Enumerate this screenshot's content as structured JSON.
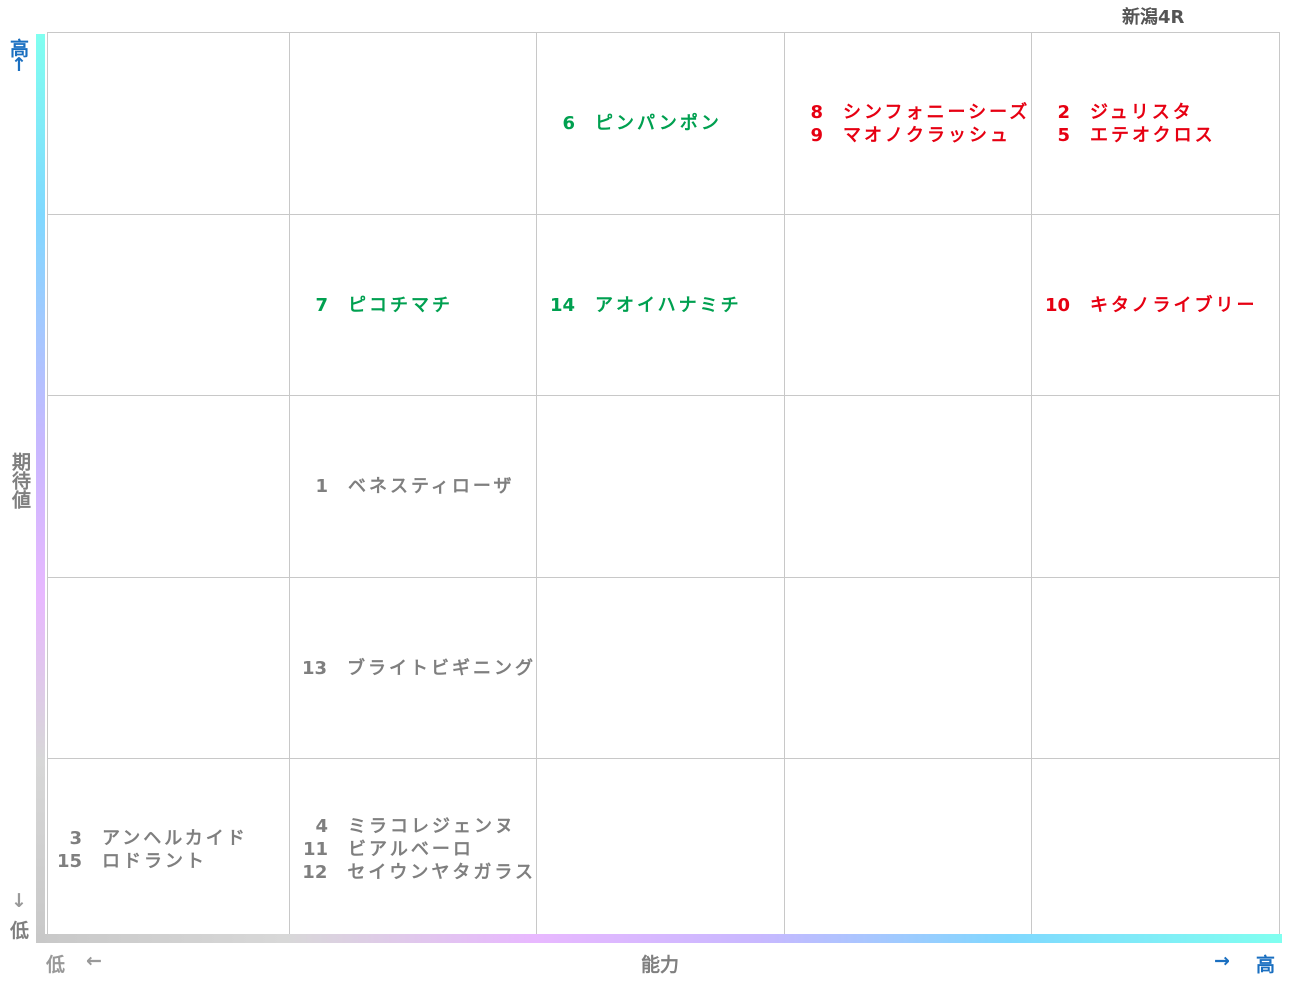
{
  "title": "新潟4R",
  "y_axis": {
    "high": "高",
    "high_arrow": "↑",
    "label": "期待値",
    "low_arrow": "↓",
    "low": "低"
  },
  "x_axis": {
    "low": "低",
    "low_arrow": "←",
    "label": "能力",
    "high_arrow": "→",
    "high": "高"
  },
  "colors": {
    "green": "#00a050",
    "red": "#e60012",
    "gray": "#7f7f7f"
  },
  "grid": [
    [
      [],
      [],
      [
        {
          "number": "6",
          "name": "ピンパンポン",
          "color": "green"
        }
      ],
      [
        {
          "number": "8",
          "name": "シンフォニーシーズ",
          "color": "red"
        },
        {
          "number": "9",
          "name": "マオノクラッシュ",
          "color": "red"
        }
      ],
      [
        {
          "number": "2",
          "name": "ジュリスタ",
          "color": "red"
        },
        {
          "number": "5",
          "name": "エテオクロス",
          "color": "red"
        }
      ]
    ],
    [
      [],
      [
        {
          "number": "7",
          "name": "ピコチマチ",
          "color": "green"
        }
      ],
      [
        {
          "number": "14",
          "name": "アオイハナミチ",
          "color": "green"
        }
      ],
      [],
      [
        {
          "number": "10",
          "name": "キタノライブリー",
          "color": "red"
        }
      ]
    ],
    [
      [],
      [
        {
          "number": "1",
          "name": "ベネスティローザ",
          "color": "gray"
        }
      ],
      [],
      [],
      []
    ],
    [
      [],
      [
        {
          "number": "13",
          "name": "ブライトビギニング",
          "color": "gray"
        }
      ],
      [],
      [],
      []
    ],
    [
      [
        {
          "number": "3",
          "name": "アンヘルカイド",
          "color": "gray"
        },
        {
          "number": "15",
          "name": "ロドラント",
          "color": "gray"
        }
      ],
      [
        {
          "number": "4",
          "name": "ミラコレジェンヌ",
          "color": "gray"
        },
        {
          "number": "11",
          "name": "ビアルベーロ",
          "color": "gray"
        },
        {
          "number": "12",
          "name": "セイウンヤタガラス",
          "color": "gray"
        }
      ],
      [],
      [],
      []
    ]
  ]
}
